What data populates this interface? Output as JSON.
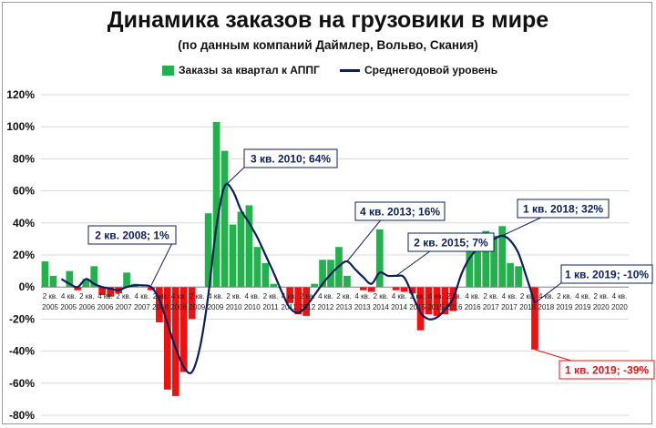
{
  "title": "Динамика заказов на грузовики в мире",
  "subtitle": "(по данным компаний Даймлер, Вольво, Скания)",
  "legend": {
    "bars_label": "Заказы за квартал к АППГ",
    "line_label": "Среднегодовой уровень"
  },
  "colors": {
    "positive": "#22b14c",
    "negative": "#ee1111",
    "line": "#0b1f5c",
    "grid": "#d9d9d9"
  },
  "chart_data": {
    "type": "bar",
    "title": "Динамика заказов на грузовики в мире",
    "subtitle": "(по данным компаний Даймлер, Вольво, Скания)",
    "xlabel": "",
    "ylabel": "",
    "ylim": [
      -80,
      120
    ],
    "ytick_labels": [
      "120%",
      "100%",
      "80%",
      "60%",
      "40%",
      "20%",
      "0%",
      "-20%",
      "-40%",
      "-60%",
      "-80%"
    ],
    "x_labels": [
      {
        "q": "2 кв.",
        "y": "2005"
      },
      {
        "q": "4 кв.",
        "y": "2005"
      },
      {
        "q": "2 кв.",
        "y": "2006"
      },
      {
        "q": "4 кв.",
        "y": "2006"
      },
      {
        "q": "2 кв.",
        "y": "2007"
      },
      {
        "q": "4 кв.",
        "y": "2007"
      },
      {
        "q": "2 кв.",
        "y": "2008"
      },
      {
        "q": "4 кв.",
        "y": "2008"
      },
      {
        "q": "2 кв.",
        "y": "2009"
      },
      {
        "q": "4 кв.",
        "y": "2009"
      },
      {
        "q": "2 кв.",
        "y": "2010"
      },
      {
        "q": "4 кв.",
        "y": "2010"
      },
      {
        "q": "2 кв.",
        "y": "2011"
      },
      {
        "q": "4 кв.",
        "y": "2011"
      },
      {
        "q": "2 кв.",
        "y": "2012"
      },
      {
        "q": "4 кв.",
        "y": "2012"
      },
      {
        "q": "2 кв.",
        "y": "2013"
      },
      {
        "q": "4 кв.",
        "y": "2013"
      },
      {
        "q": "2 кв.",
        "y": "2014"
      },
      {
        "q": "4 кв.",
        "y": "2014"
      },
      {
        "q": "2 кв.",
        "y": "2015"
      },
      {
        "q": "4 кв.",
        "y": "2015"
      },
      {
        "q": "2 кв.",
        "y": "2016"
      },
      {
        "q": "4 кв.",
        "y": "2016"
      },
      {
        "q": "2 кв.",
        "y": "2017"
      },
      {
        "q": "4 кв.",
        "y": "2017"
      },
      {
        "q": "2 кв.",
        "y": "2018"
      },
      {
        "q": "4 кв.",
        "y": "2018"
      },
      {
        "q": "2 кв.",
        "y": "2019"
      },
      {
        "q": "4 кв.",
        "y": "2019"
      },
      {
        "q": "2 кв.",
        "y": "2020"
      },
      {
        "q": "4 кв.",
        "y": "2020"
      }
    ],
    "series": [
      {
        "name": "Заказы за квартал к АППГ",
        "kind": "bar",
        "values": [
          16,
          7,
          0,
          10,
          -2,
          5,
          13,
          -5,
          -6,
          -4,
          9,
          2,
          0,
          -2,
          -22,
          -64,
          -68,
          -53,
          -20,
          0,
          46,
          103,
          85,
          39,
          47,
          51,
          25,
          15,
          2,
          0,
          -10,
          -17,
          -18,
          2,
          17,
          17,
          25,
          7,
          0,
          -2,
          -3,
          36,
          0,
          -2,
          -3,
          -4,
          -27,
          -17,
          -18,
          -17,
          -15,
          0,
          22,
          22,
          35,
          32,
          38,
          15,
          13,
          0,
          -39,
          0,
          0,
          0,
          0,
          0,
          0,
          0,
          0
        ]
      },
      {
        "name": "Среднегодовой уровень",
        "kind": "line",
        "values": [
          null,
          null,
          5,
          2,
          0,
          5,
          2,
          0,
          -1,
          -2,
          0,
          1,
          1,
          0,
          -8,
          -23,
          -38,
          -50,
          -53,
          -37,
          -5,
          38,
          63,
          60,
          48,
          40,
          31,
          20,
          9,
          -3,
          -13,
          -16,
          -12,
          -5,
          2,
          8,
          13,
          16,
          11,
          6,
          2,
          9,
          7,
          7,
          6,
          -5,
          -16,
          -20,
          -19,
          -14,
          -7,
          8,
          18,
          24,
          28,
          30,
          32,
          29,
          21,
          6,
          -10
        ]
      }
    ],
    "annotations": [
      {
        "text": "2 кв. 2008; 1%",
        "color": "#0b1f5c"
      },
      {
        "text": "3 кв. 2010; 64%",
        "color": "#0b1f5c"
      },
      {
        "text": "4 кв. 2013; 16%",
        "color": "#0b1f5c"
      },
      {
        "text": "2 кв. 2015; 7%",
        "color": "#0b1f5c"
      },
      {
        "text": "1 кв. 2018; 32%",
        "color": "#0b1f5c"
      },
      {
        "text": "1 кв. 2019; -10%",
        "color": "#0b1f5c"
      },
      {
        "text": "1 кв. 2019; -39%",
        "color": "#ee1111"
      }
    ]
  }
}
